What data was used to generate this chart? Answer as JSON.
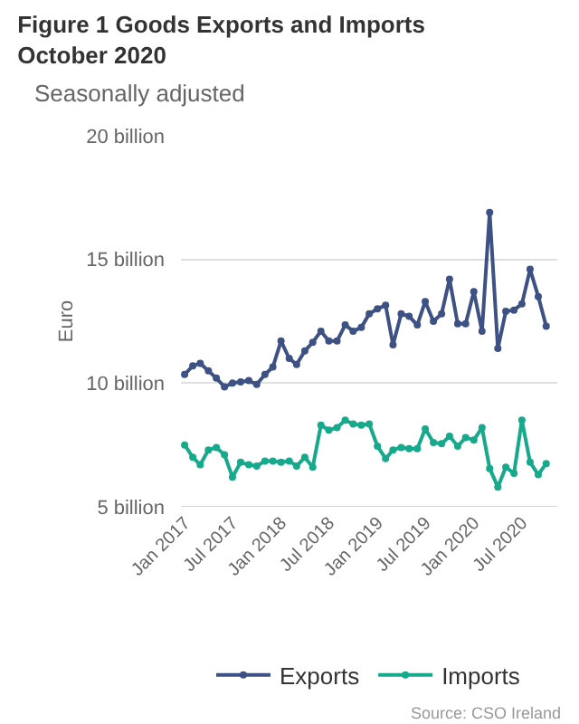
{
  "chart_data": {
    "type": "line",
    "title": "Figure 1 Goods Exports and Imports October 2020",
    "subtitle": "Seasonally adjusted",
    "ylabel": "Euro",
    "x": [
      "2017-01",
      "2017-02",
      "2017-03",
      "2017-04",
      "2017-05",
      "2017-06",
      "2017-07",
      "2017-08",
      "2017-09",
      "2017-10",
      "2017-11",
      "2017-12",
      "2018-01",
      "2018-02",
      "2018-03",
      "2018-04",
      "2018-05",
      "2018-06",
      "2018-07",
      "2018-08",
      "2018-09",
      "2018-10",
      "2018-11",
      "2018-12",
      "2019-01",
      "2019-02",
      "2019-03",
      "2019-04",
      "2019-05",
      "2019-06",
      "2019-07",
      "2019-08",
      "2019-09",
      "2019-10",
      "2019-11",
      "2019-12",
      "2020-01",
      "2020-02",
      "2020-03",
      "2020-04",
      "2020-05",
      "2020-06",
      "2020-07",
      "2020-08",
      "2020-09",
      "2020-10"
    ],
    "series": [
      {
        "name": "Exports",
        "color": "#3d5185",
        "values": [
          10.35,
          10.7,
          10.8,
          10.5,
          10.2,
          9.85,
          10.0,
          10.05,
          10.1,
          9.95,
          10.35,
          10.65,
          11.7,
          11.0,
          10.75,
          11.3,
          11.65,
          12.1,
          11.7,
          11.7,
          12.35,
          12.1,
          12.25,
          12.8,
          13.0,
          13.15,
          11.55,
          12.8,
          12.7,
          12.35,
          13.3,
          12.5,
          12.8,
          14.2,
          12.4,
          12.4,
          13.7,
          12.1,
          16.9,
          11.4,
          12.9,
          12.95,
          13.2,
          14.6,
          13.5,
          12.3
        ]
      },
      {
        "name": "Imports",
        "color": "#17a98b",
        "values": [
          7.5,
          7.0,
          6.7,
          7.3,
          7.4,
          7.1,
          6.2,
          6.8,
          6.7,
          6.65,
          6.85,
          6.85,
          6.8,
          6.85,
          6.65,
          7.0,
          6.6,
          8.3,
          8.1,
          8.2,
          8.5,
          8.35,
          8.3,
          8.35,
          7.45,
          6.95,
          7.3,
          7.4,
          7.35,
          7.35,
          8.15,
          7.6,
          7.55,
          7.85,
          7.45,
          7.8,
          7.7,
          8.2,
          6.55,
          5.8,
          6.6,
          6.35,
          8.5,
          6.8,
          6.3,
          6.75
        ]
      }
    ],
    "xlim": [
      "2016-12-18",
      "2020-11-12"
    ],
    "xticks": [
      {
        "value": "2017-01",
        "label": "Jan 2017"
      },
      {
        "value": "2017-07",
        "label": "Jul 2017"
      },
      {
        "value": "2018-01",
        "label": "Jan 2018"
      },
      {
        "value": "2018-07",
        "label": "Jul 2018"
      },
      {
        "value": "2019-01",
        "label": "Jan 2019"
      },
      {
        "value": "2019-07",
        "label": "Jul 2019"
      },
      {
        "value": "2020-01",
        "label": "Jan 2020"
      },
      {
        "value": "2020-07",
        "label": "Jul 2020"
      }
    ],
    "ylim": [
      5,
      20
    ],
    "yticks": [
      {
        "value": 5,
        "label": "5 billion"
      },
      {
        "value": 10,
        "label": "10 billion"
      },
      {
        "value": 15,
        "label": "15 billion"
      },
      {
        "value": 20,
        "label": "20 billion"
      }
    ],
    "grid": "y",
    "legend": "bottom",
    "marker": "circle",
    "line_style": "solid",
    "annotations": [
      "Source: CSO Ireland"
    ]
  }
}
